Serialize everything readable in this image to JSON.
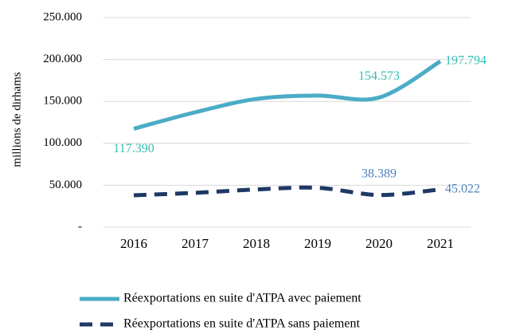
{
  "chart_data": {
    "type": "line",
    "y_label": "millions de dirhams",
    "categories": [
      "2016",
      "2017",
      "2018",
      "2019",
      "2020",
      "2021"
    ],
    "series": [
      {
        "name": "Réexportations en suite d'ATPA avec paiement",
        "color": "#4bacc6",
        "label_color": "#36bdb4",
        "dash": false,
        "values": [
          117390,
          137000,
          153000,
          157000,
          154573,
          197794
        ],
        "value_labels": [
          "117.390",
          null,
          null,
          null,
          "154.573",
          "197.794"
        ]
      },
      {
        "name": "Réexportations en suite d'ATPA sans paiement",
        "color": "#1f3864",
        "label_color": "#4f81bd",
        "dash": true,
        "values": [
          38000,
          41000,
          45000,
          47000,
          38389,
          45022
        ],
        "value_labels": [
          null,
          null,
          null,
          null,
          "38.389",
          "45.022"
        ]
      }
    ],
    "ylim": [
      0,
      250000
    ],
    "yticks": [
      {
        "value": 0,
        "label": "-"
      },
      {
        "value": 50000,
        "label": "50.000"
      },
      {
        "value": 100000,
        "label": "100.000"
      },
      {
        "value": 150000,
        "label": "150.000"
      },
      {
        "value": 200000,
        "label": "200.000"
      },
      {
        "value": 250000,
        "label": "250.000"
      }
    ],
    "grid": true
  }
}
